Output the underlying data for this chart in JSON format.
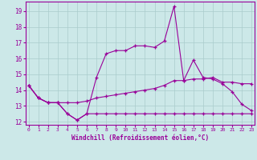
{
  "xlabel": "Windchill (Refroidissement éolien,°C)",
  "background_color": "#cce8e8",
  "grid_color": "#aacccc",
  "line_color": "#990099",
  "x_data": [
    0,
    1,
    2,
    3,
    4,
    5,
    6,
    7,
    8,
    9,
    10,
    11,
    12,
    13,
    14,
    15,
    16,
    17,
    18,
    19,
    20,
    21,
    22,
    23
  ],
  "line1": [
    14.3,
    13.5,
    13.2,
    13.2,
    12.5,
    12.1,
    12.5,
    14.8,
    16.3,
    16.5,
    16.5,
    16.8,
    16.8,
    16.7,
    17.1,
    19.3,
    14.6,
    15.9,
    14.8,
    14.7,
    14.4,
    13.9,
    13.1,
    12.7
  ],
  "line2": [
    14.3,
    13.5,
    13.2,
    13.2,
    13.2,
    13.2,
    13.3,
    13.5,
    13.6,
    13.7,
    13.8,
    13.9,
    14.0,
    14.1,
    14.3,
    14.6,
    14.6,
    14.7,
    14.7,
    14.8,
    14.5,
    14.5,
    14.4,
    14.4
  ],
  "line3": [
    14.3,
    13.5,
    13.2,
    13.2,
    12.5,
    12.1,
    12.5,
    12.5,
    12.5,
    12.5,
    12.5,
    12.5,
    12.5,
    12.5,
    12.5,
    12.5,
    12.5,
    12.5,
    12.5,
    12.5,
    12.5,
    12.5,
    12.5,
    12.5
  ],
  "ylim": [
    11.8,
    19.6
  ],
  "yticks": [
    12,
    13,
    14,
    15,
    16,
    17,
    18,
    19
  ],
  "xticks": [
    0,
    1,
    2,
    3,
    4,
    5,
    6,
    7,
    8,
    9,
    10,
    11,
    12,
    13,
    14,
    15,
    16,
    17,
    18,
    19,
    20,
    21,
    22,
    23
  ],
  "xlim": [
    -0.3,
    23.3
  ]
}
